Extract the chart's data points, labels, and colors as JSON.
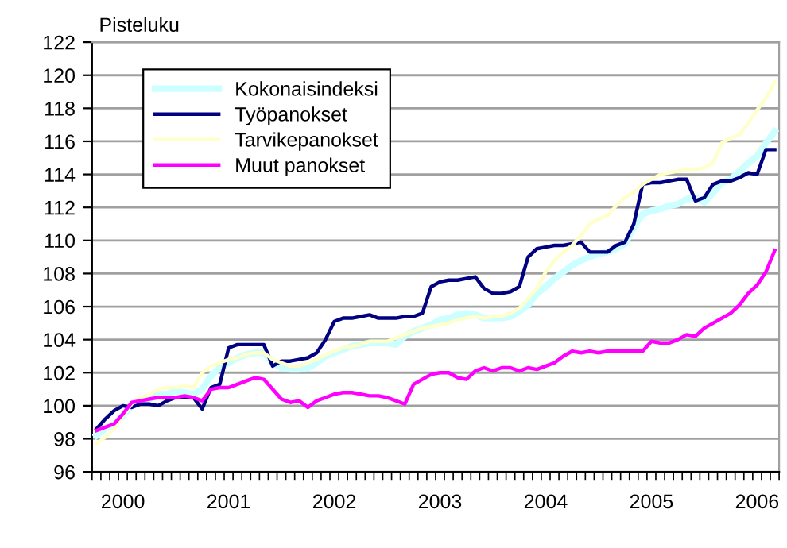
{
  "chart_data": {
    "type": "line",
    "ylabel": "Pisteluku",
    "categories": [
      null,
      null,
      null,
      "2000",
      null,
      null,
      null,
      null,
      null,
      null,
      null,
      null,
      null,
      null,
      null,
      "2001",
      null,
      null,
      null,
      null,
      null,
      null,
      null,
      null,
      null,
      null,
      null,
      "2002",
      null,
      null,
      null,
      null,
      null,
      null,
      null,
      null,
      null,
      null,
      null,
      "2003",
      null,
      null,
      null,
      null,
      null,
      null,
      null,
      null,
      null,
      null,
      null,
      "2004",
      null,
      null,
      null,
      null,
      null,
      null,
      null,
      null,
      null,
      null,
      null,
      "2005",
      null,
      null,
      null,
      null,
      null,
      null,
      null,
      null,
      null,
      null,
      null,
      "2006",
      null,
      null
    ],
    "ylim": [
      96,
      122
    ],
    "yticks": [
      96,
      98,
      100,
      102,
      104,
      106,
      108,
      110,
      112,
      114,
      116,
      118,
      120,
      122
    ],
    "grid": "y",
    "legend": "top left",
    "line_style": "solid",
    "marker": "none",
    "series": [
      {
        "name": "Kokonaisindeksi",
        "color": "#ccffff",
        "values": [
          98.2,
          98.6,
          98.9,
          99.4,
          100.0,
          100.3,
          100.4,
          100.7,
          100.7,
          100.9,
          100.8,
          100.7,
          101.0,
          101.8,
          102.3,
          102.6,
          102.9,
          103.1,
          103.2,
          103.2,
          102.6,
          102.3,
          102.2,
          102.2,
          102.3,
          102.6,
          103.0,
          103.2,
          103.4,
          103.6,
          103.7,
          103.8,
          103.8,
          103.8,
          103.7,
          104.2,
          104.5,
          104.7,
          104.9,
          105.2,
          105.3,
          105.5,
          105.6,
          105.5,
          105.3,
          105.3,
          105.3,
          105.4,
          105.7,
          106.1,
          106.8,
          107.2,
          107.7,
          108.1,
          108.5,
          108.8,
          109.0,
          109.2,
          109.3,
          109.5,
          109.8,
          110.8,
          111.6,
          111.8,
          111.9,
          112.1,
          112.2,
          112.5,
          112.6,
          112.3,
          112.9,
          113.5,
          113.7,
          114.2,
          114.7,
          115.1,
          115.9,
          116.6
        ]
      },
      {
        "name": "Työpanokset",
        "color": "#000080",
        "values": [
          98.6,
          99.2,
          99.7,
          100.0,
          99.9,
          100.1,
          100.1,
          100.0,
          100.3,
          100.5,
          100.5,
          100.5,
          99.8,
          101.1,
          101.3,
          103.5,
          103.7,
          103.7,
          103.7,
          103.7,
          102.4,
          102.7,
          102.7,
          102.8,
          102.9,
          103.2,
          104.0,
          105.1,
          105.3,
          105.3,
          105.4,
          105.5,
          105.3,
          105.3,
          105.3,
          105.4,
          105.4,
          105.6,
          107.2,
          107.5,
          107.6,
          107.6,
          107.7,
          107.8,
          107.1,
          106.8,
          106.8,
          106.9,
          107.2,
          109.0,
          109.5,
          109.6,
          109.7,
          109.7,
          109.8,
          109.9,
          109.3,
          109.3,
          109.3,
          109.7,
          109.9,
          111.0,
          113.4,
          113.5,
          113.5,
          113.6,
          113.7,
          113.7,
          112.4,
          112.6,
          113.4,
          113.6,
          113.6,
          113.8,
          114.1,
          114.0,
          115.5,
          115.5
        ]
      },
      {
        "name": "Tarvikepanokset",
        "color": "#ffffcc",
        "values": [
          97.7,
          98.1,
          98.6,
          99.4,
          100.1,
          100.5,
          100.7,
          101.0,
          101.1,
          101.1,
          101.2,
          101.1,
          102.0,
          102.4,
          102.6,
          102.8,
          102.9,
          103.1,
          103.2,
          103.2,
          102.8,
          102.6,
          102.4,
          102.4,
          102.6,
          102.8,
          103.1,
          103.3,
          103.5,
          103.6,
          103.7,
          103.9,
          103.9,
          103.9,
          104.1,
          104.3,
          104.5,
          104.7,
          104.8,
          104.9,
          105.0,
          105.2,
          105.3,
          105.4,
          105.3,
          105.4,
          105.4,
          105.6,
          105.9,
          106.5,
          107.1,
          108.1,
          108.8,
          109.3,
          109.7,
          110.3,
          111.0,
          111.3,
          111.5,
          112.1,
          112.6,
          112.9,
          113.4,
          113.7,
          114.0,
          114.1,
          114.2,
          114.3,
          114.3,
          114.4,
          114.7,
          115.9,
          116.2,
          116.4,
          117.1,
          117.9,
          118.6,
          119.6
        ]
      },
      {
        "name": "Muut panokset",
        "color": "#ff00ff",
        "values": [
          98.5,
          98.7,
          98.9,
          99.5,
          100.2,
          100.3,
          100.4,
          100.5,
          100.5,
          100.5,
          100.6,
          100.5,
          100.3,
          101.0,
          101.1,
          101.1,
          101.3,
          101.5,
          101.7,
          101.6,
          101.0,
          100.4,
          100.2,
          100.3,
          99.9,
          100.3,
          100.5,
          100.7,
          100.8,
          100.8,
          100.7,
          100.6,
          100.6,
          100.5,
          100.3,
          100.1,
          101.3,
          101.6,
          101.9,
          102.0,
          102.0,
          101.7,
          101.6,
          102.1,
          102.3,
          102.1,
          102.3,
          102.3,
          102.1,
          102.3,
          102.2,
          102.4,
          102.6,
          103.0,
          103.3,
          103.2,
          103.3,
          103.2,
          103.3,
          103.3,
          103.3,
          103.3,
          103.3,
          103.9,
          103.8,
          103.8,
          104.0,
          104.3,
          104.2,
          104.7,
          105.0,
          105.3,
          105.6,
          106.1,
          106.8,
          107.3,
          108.1,
          109.4
        ]
      }
    ]
  }
}
